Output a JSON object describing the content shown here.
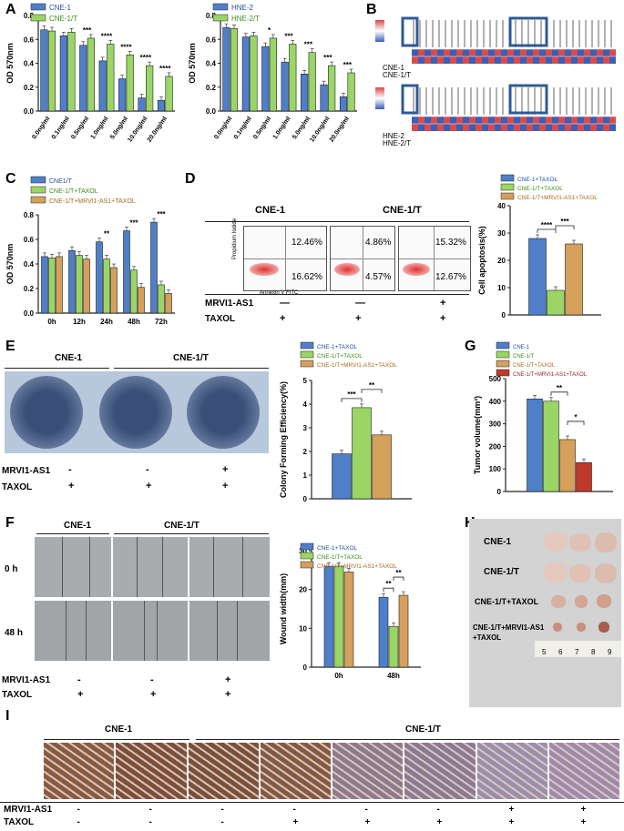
{
  "panel_labels": [
    "A",
    "B",
    "C",
    "D",
    "E",
    "F",
    "G",
    "H",
    "I"
  ],
  "colors": {
    "blue": "#4f7fc8",
    "green": "#9ad566",
    "orange": "#d4a05b",
    "red": "#c0392b",
    "dark": "#222"
  },
  "chart_data": [
    {
      "id": "A1",
      "type": "bar",
      "ylabel": "OD 570nm",
      "ylim": [
        0,
        0.8
      ],
      "yticks": [
        "0.0",
        "0.2",
        "0.4",
        "0.6",
        "0.8"
      ],
      "categories": [
        "0.0ng/ml",
        "0.1ng/ml",
        "0.5ng/ml",
        "1.0ng/ml",
        "5.0ng/ml",
        "10.0ng/ml",
        "20.0ng/ml"
      ],
      "series": [
        {
          "name": "CNE-1",
          "values": [
            0.68,
            0.63,
            0.55,
            0.42,
            0.27,
            0.11,
            0.09
          ]
        },
        {
          "name": "CNE-1/T",
          "values": [
            0.67,
            0.66,
            0.61,
            0.56,
            0.47,
            0.38,
            0.29
          ]
        }
      ],
      "sig": [
        "",
        "",
        "***",
        "****",
        "****",
        "****",
        "****"
      ]
    },
    {
      "id": "A2",
      "type": "bar",
      "ylabel": "OD 570nm",
      "ylim": [
        0,
        0.8
      ],
      "yticks": [
        "0.0",
        "0.2",
        "0.4",
        "0.6",
        "0.8"
      ],
      "categories": [
        "0.0ng/ml",
        "0.1ng/ml",
        "0.5ng/ml",
        "1.0ng/ml",
        "5.0ng/ml",
        "10.0ng/ml",
        "20.0ng/ml"
      ],
      "series": [
        {
          "name": "HNE-2",
          "values": [
            0.7,
            0.62,
            0.54,
            0.41,
            0.31,
            0.22,
            0.12
          ]
        },
        {
          "name": "HNE-2/T",
          "values": [
            0.69,
            0.63,
            0.61,
            0.56,
            0.49,
            0.38,
            0.32
          ]
        }
      ],
      "sig": [
        "",
        "",
        "*",
        "***",
        "***",
        "***",
        "***"
      ]
    },
    {
      "id": "C",
      "type": "bar",
      "ylabel": "OD 570nm",
      "ylim": [
        0,
        0.8
      ],
      "yticks": [
        "0.0",
        "0.2",
        "0.4",
        "0.6",
        "0.8"
      ],
      "categories": [
        "0h",
        "12h",
        "24h",
        "48h",
        "72h"
      ],
      "series": [
        {
          "name": "CNE1/T",
          "values": [
            0.46,
            0.51,
            0.58,
            0.67,
            0.74
          ]
        },
        {
          "name": "CNE-1/T+TAXOL",
          "values": [
            0.45,
            0.47,
            0.44,
            0.35,
            0.23
          ]
        },
        {
          "name": "CNE-1/T+MRVI1-AS1+TAXOL",
          "values": [
            0.46,
            0.44,
            0.37,
            0.21,
            0.16
          ]
        }
      ],
      "sig": [
        "",
        "",
        "**",
        "***",
        "***"
      ]
    },
    {
      "id": "D",
      "type": "bar",
      "ylabel": "Cell apoptosis(%)",
      "ylim": [
        0,
        40
      ],
      "yticks": [
        "0",
        "10",
        "20",
        "30",
        "40"
      ],
      "categories": [
        ""
      ],
      "series": [
        {
          "name": "CNE-1+TAXOL",
          "values": [
            28
          ]
        },
        {
          "name": "CNE-1/T+TAXOL",
          "values": [
            9
          ]
        },
        {
          "name": "CNE-1/T+MRVI1-AS1+TAXOL",
          "values": [
            26
          ]
        }
      ],
      "brackets": [
        {
          "from": 0,
          "to": 1,
          "text": "****"
        },
        {
          "from": 1,
          "to": 2,
          "text": "***"
        }
      ]
    },
    {
      "id": "E",
      "type": "bar",
      "ylabel": "Colony Forming Efficiency(%)",
      "ylim": [
        0,
        5
      ],
      "yticks": [
        "0",
        "1",
        "2",
        "3",
        "4",
        "5"
      ],
      "categories": [
        ""
      ],
      "series": [
        {
          "name": "CNE-1+TAXOL",
          "values": [
            1.9
          ]
        },
        {
          "name": "CNE-1/T+TAXOL",
          "values": [
            3.85
          ]
        },
        {
          "name": "CNE-1/T+MRVI1-AS1+TAXOL",
          "values": [
            2.7
          ]
        }
      ],
      "brackets": [
        {
          "from": 0,
          "to": 1,
          "text": "***"
        },
        {
          "from": 1,
          "to": 2,
          "text": "**"
        }
      ]
    },
    {
      "id": "G",
      "type": "bar",
      "ylabel": "Tumor volume(mm³)",
      "ylim": [
        0,
        500
      ],
      "yticks": [
        "0",
        "100",
        "200",
        "300",
        "400",
        "500"
      ],
      "categories": [
        ""
      ],
      "series": [
        {
          "name": "CNE-1",
          "values": [
            410
          ]
        },
        {
          "name": "CNE-1/T",
          "values": [
            400
          ]
        },
        {
          "name": "CNE-1/T+TAXOL",
          "values": [
            230
          ]
        },
        {
          "name": "CNE-1/T+MRVI1-AS1+TAXOL",
          "values": [
            128
          ]
        }
      ],
      "brackets": [
        {
          "from": 1,
          "to": 2,
          "text": "**"
        },
        {
          "from": 2,
          "to": 3,
          "text": "*"
        }
      ]
    },
    {
      "id": "F",
      "type": "bar",
      "ylabel": "Wound width(mm)",
      "ylim": [
        0,
        30
      ],
      "yticks": [
        "0",
        "10",
        "20",
        "30"
      ],
      "categories": [
        "0h",
        "48h"
      ],
      "series": [
        {
          "name": "CNE-1+TAXOL",
          "values": [
            26,
            18
          ]
        },
        {
          "name": "CNE-1/T+TAXOL",
          "values": [
            26,
            10.5
          ]
        },
        {
          "name": "CNE-1/T+MRVI1-AS1+TAXOL",
          "values": [
            24.5,
            18.5
          ]
        }
      ],
      "brackets48": [
        {
          "from": 0,
          "to": 1,
          "text": "**"
        },
        {
          "from": 1,
          "to": 2,
          "text": "**"
        }
      ]
    }
  ],
  "panelD": {
    "title_left": "CNE-1",
    "title_right": "CNE-1/T",
    "flow": [
      {
        "ur": "12.46%",
        "lr": "16.62%"
      },
      {
        "ur": "4.86%",
        "lr": "4.57%"
      },
      {
        "ur": "15.32%",
        "lr": "12.67%"
      }
    ],
    "xaxis": "Annexin V  FITC",
    "yaxis": "Propidium Iodide",
    "row1": "MRVI1-AS1",
    "row1_vals": [
      "—",
      "—",
      "+"
    ],
    "row2": "TAXOL",
    "row2_vals": [
      "+",
      "+",
      "+"
    ]
  },
  "panelE": {
    "title_left": "CNE-1",
    "title_right": "CNE-1/T",
    "row1": "MRVI1-AS1",
    "row1_vals": [
      "-",
      "-",
      "+"
    ],
    "row2": "TAXOL",
    "row2_vals": [
      "+",
      "+",
      "+"
    ]
  },
  "panelF": {
    "title_left": "CNE-1",
    "title_right": "CNE-1/T",
    "t0": "0 h",
    "t48": "48 h",
    "row1": "MRVI1-AS1",
    "row1_vals": [
      "-",
      "-",
      "+"
    ],
    "row2": "TAXOL",
    "row2_vals": [
      "+",
      "+",
      "+"
    ]
  },
  "panelH": {
    "rows": [
      "CNE-1",
      "CNE-1/T",
      "CNE-1/T+TAXOL",
      "CNE-1/T+MRVI1-AS1\n+TAXOL"
    ],
    "ruler": [
      "5",
      "6",
      "7",
      "8",
      "9"
    ]
  },
  "panelI": {
    "title_left": "CNE-1",
    "title_right": "CNE-1/T",
    "row1": "MRVI1-AS1",
    "row1_vals": [
      "-",
      "-",
      "-",
      "-",
      "-",
      "-",
      "+",
      "+"
    ],
    "row2": "TAXOL",
    "row2_vals": [
      "-",
      "-",
      "-",
      "+",
      "+",
      "+",
      "+",
      "+"
    ]
  },
  "panelB": {
    "rows_top": [
      "CNE-1",
      "CNE-1/T"
    ],
    "rows_bot": [
      "HNE-2",
      "HNE-2/T"
    ]
  }
}
